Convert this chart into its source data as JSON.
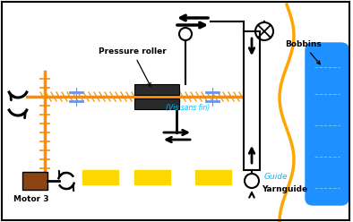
{
  "bg_color": "#ffffff",
  "border_color": "#000000",
  "orange_color": "#FF8C00",
  "blue_color": "#1E90FF",
  "dark_gray": "#2a2a2a",
  "gold_color": "#FFD700",
  "brown_color": "#8B4513",
  "cyan_text": "#00BFFF",
  "light_blue": "#6495ED",
  "yellow_orange": "#FFA500",
  "vis_sans_fin_text": "(Vis sans fin)",
  "pressure_roller_text": "Pressure roller",
  "motor3_text": "Motor 3",
  "bobbins_text": "Bobbins",
  "guide_text": "Guide",
  "yarnguide_text": "Yarnguide"
}
